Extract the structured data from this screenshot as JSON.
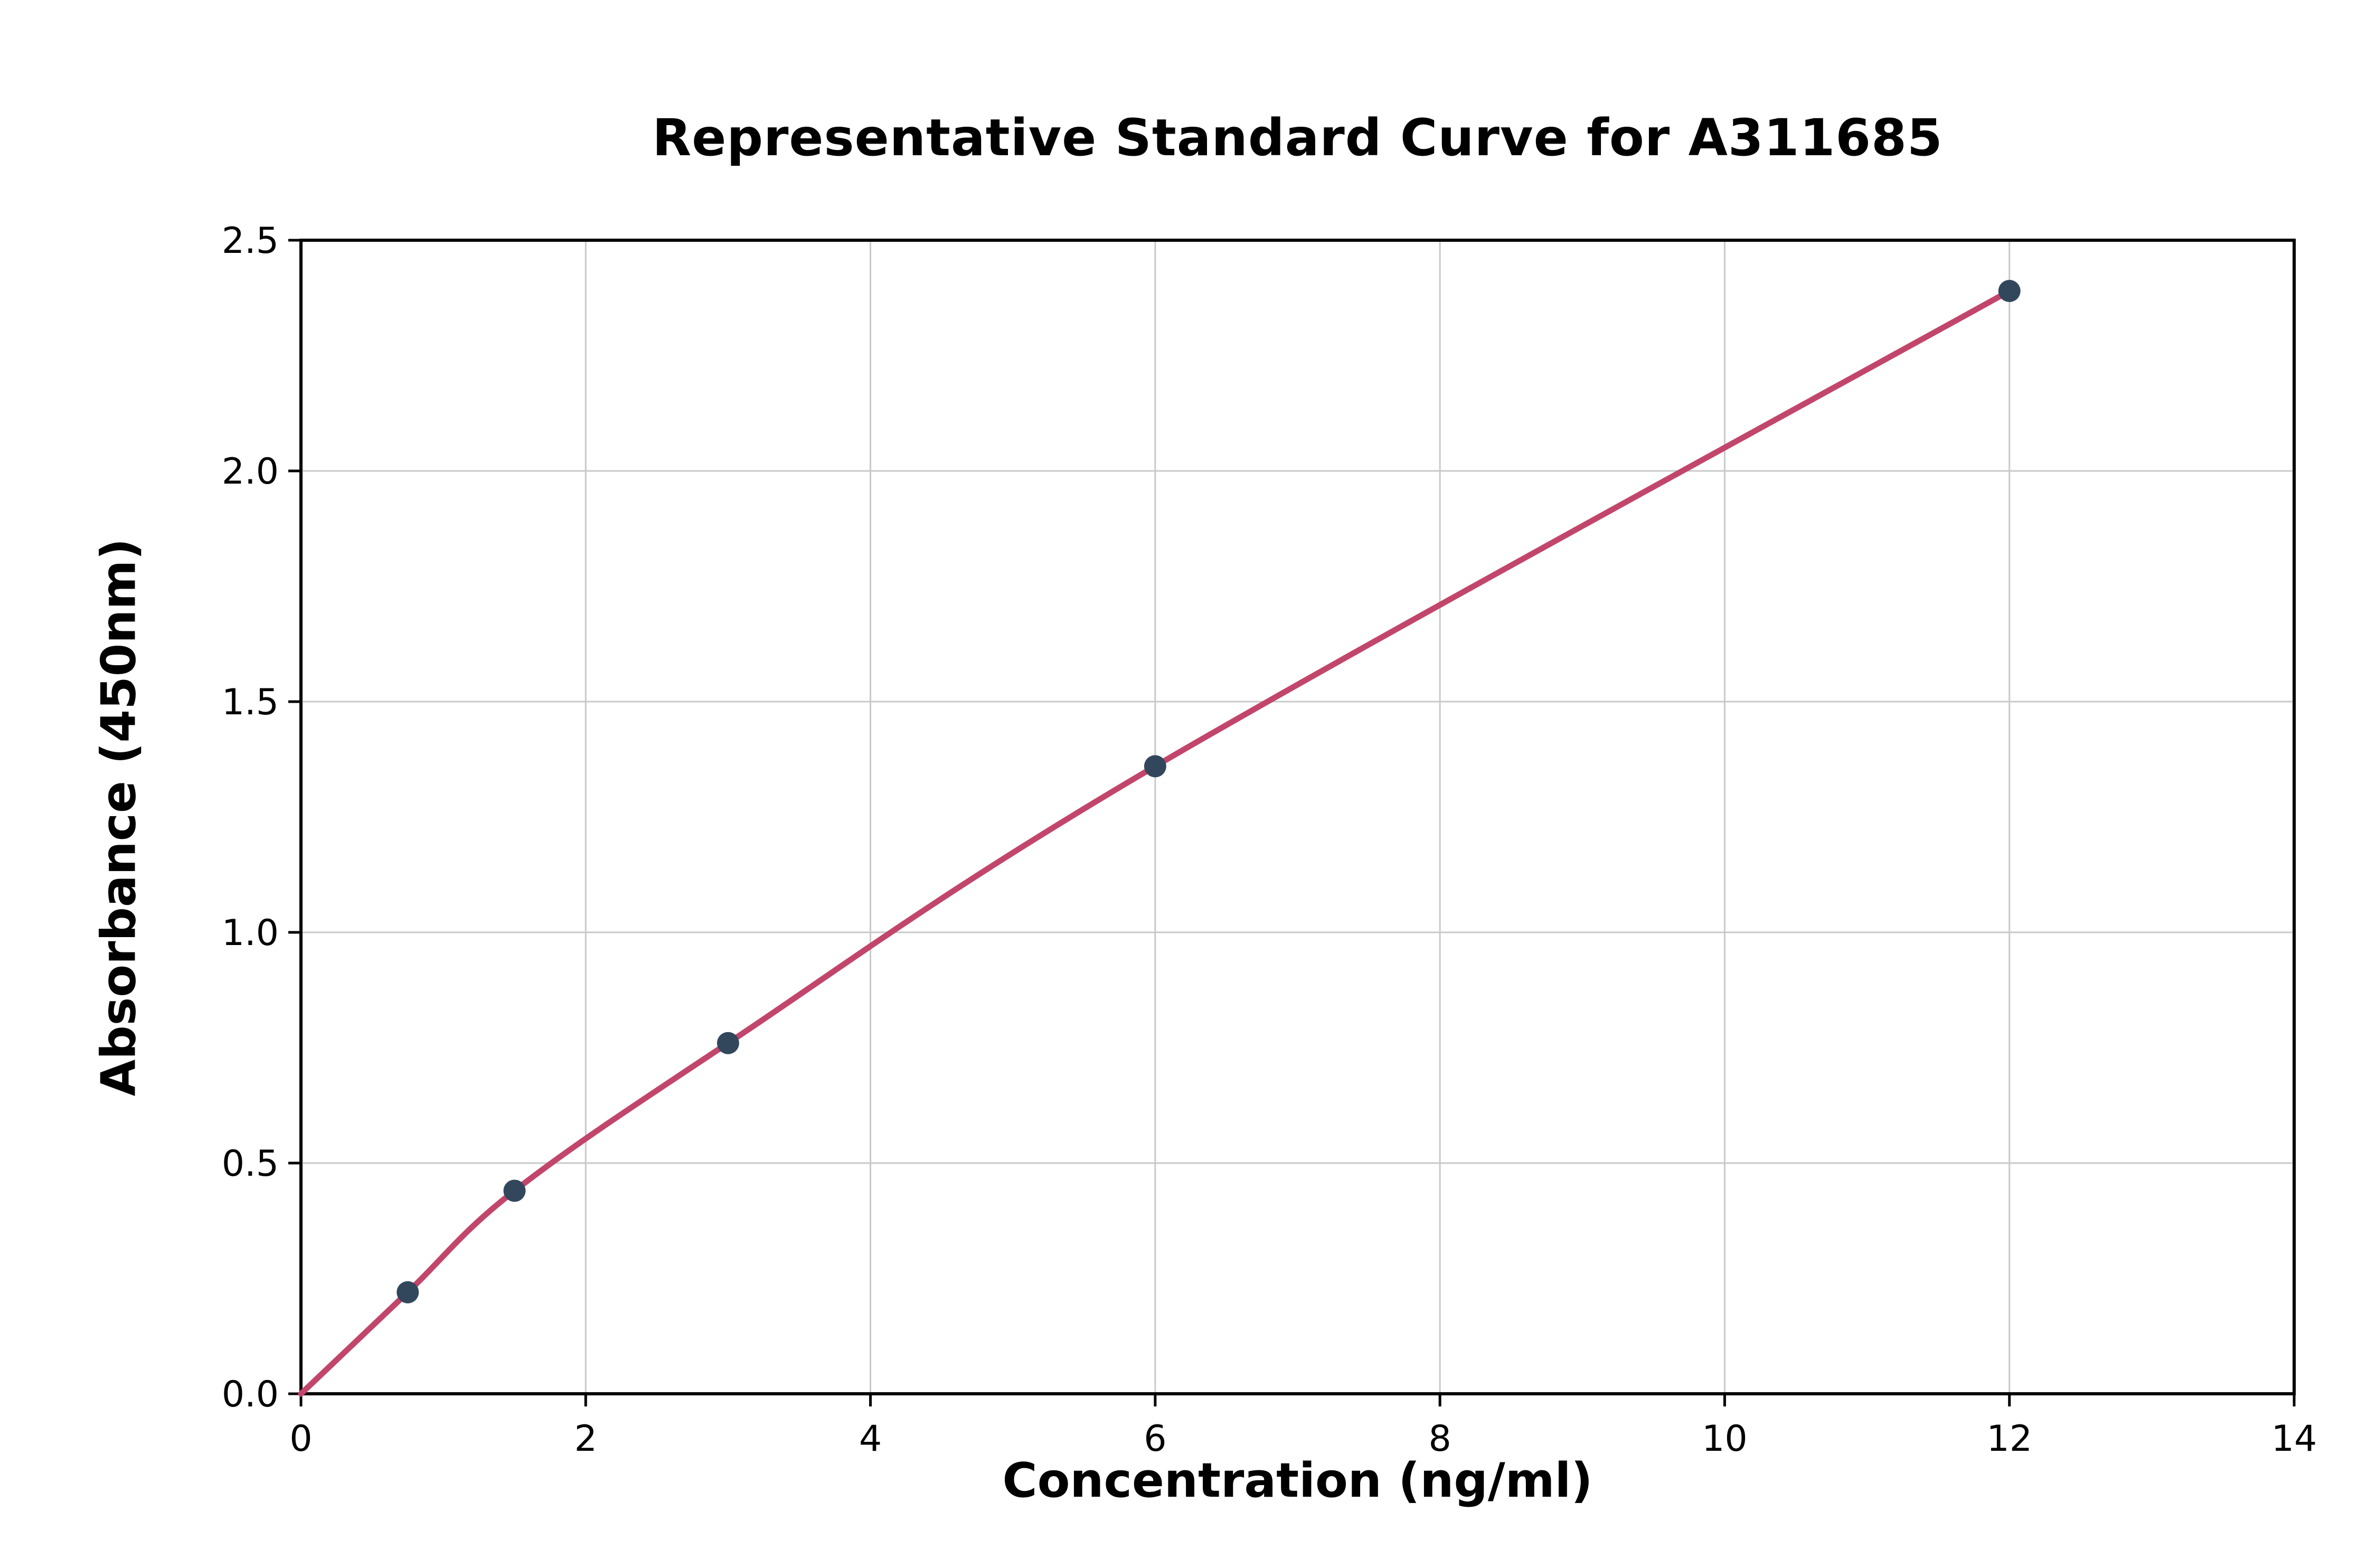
{
  "chart_data": {
    "type": "line",
    "title": "Representative Standard Curve for A311685",
    "xlabel": "Concentration (ng/ml)",
    "ylabel": "Absorbance (450nm)",
    "xlim": [
      0,
      14
    ],
    "ylim": [
      0,
      2.5
    ],
    "xticks": {
      "values": [
        0,
        2,
        4,
        6,
        8,
        10,
        12,
        14
      ],
      "labels": [
        "0",
        "2",
        "4",
        "6",
        "8",
        "10",
        "12",
        "14"
      ]
    },
    "yticks": {
      "values": [
        0,
        0.5,
        1.0,
        1.5,
        2.0,
        2.5
      ],
      "labels": [
        "0.0",
        "0.5",
        "1.0",
        "1.5",
        "2.0",
        "2.5"
      ]
    },
    "grid": true,
    "legend_position": "none",
    "colors": {
      "curve": "#c2466b",
      "marker": "#33475c",
      "grid": "#c9c9c9",
      "spine": "#000000",
      "background": "#ffffff"
    },
    "series": [
      {
        "name": "standard-curve-fit",
        "style": "smooth-line",
        "points": [
          [
            0,
            0
          ],
          [
            0.75,
            0.22
          ],
          [
            1.5,
            0.44
          ],
          [
            3,
            0.76
          ],
          [
            6,
            1.36
          ],
          [
            12,
            2.39
          ]
        ]
      },
      {
        "name": "standard-points",
        "style": "scatter",
        "x": [
          0.75,
          1.5,
          3,
          6,
          12
        ],
        "y": [
          0.22,
          0.44,
          0.76,
          1.36,
          2.39
        ]
      }
    ]
  }
}
